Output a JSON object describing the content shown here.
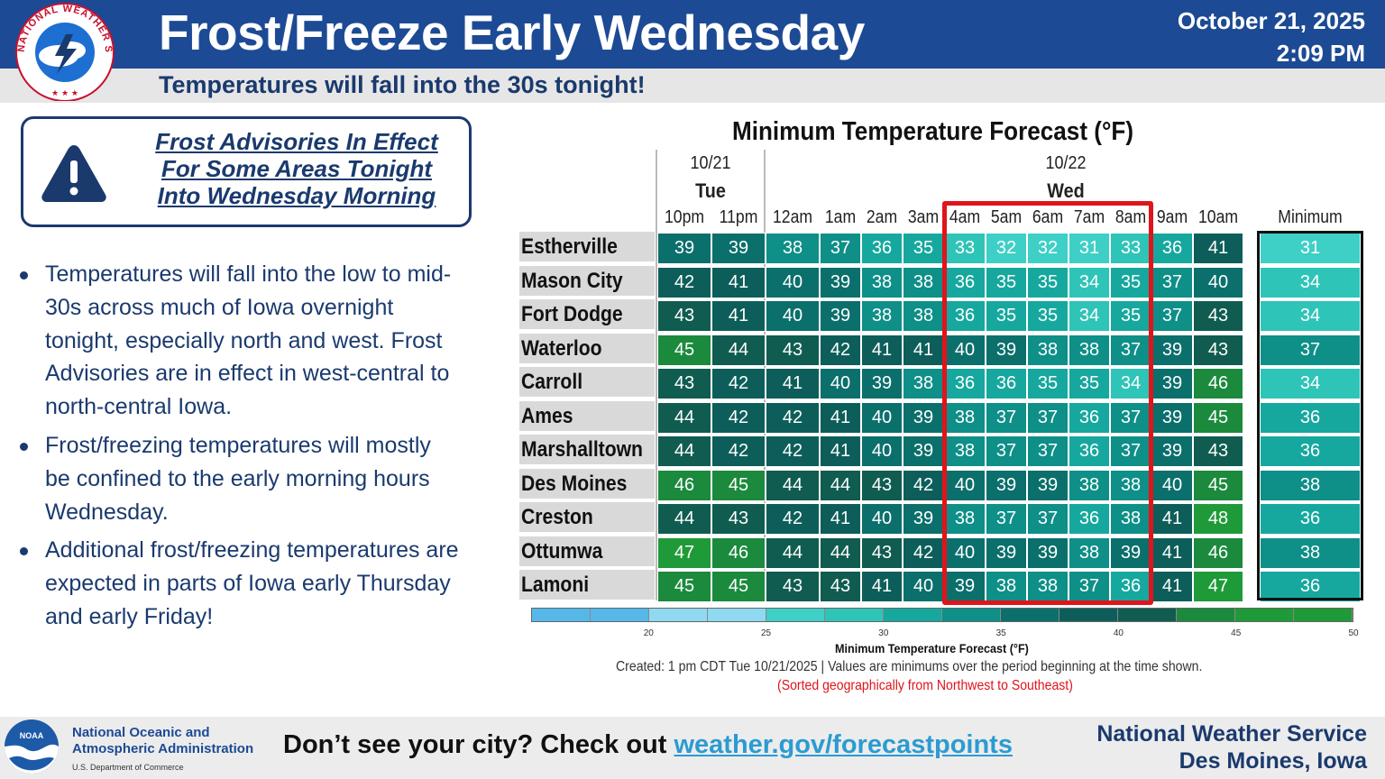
{
  "header": {
    "title": "Frost/Freeze Early Wednesday",
    "subtitle": "Temperatures will fall into the 30s tonight!",
    "date": "October 21, 2025",
    "time": "2:09 PM",
    "logo_text": "NATIONAL WEATHER SERVICE"
  },
  "advisory": {
    "lines": [
      "Frost Advisories In Effect",
      "For Some Areas Tonight",
      "Into Wednesday Morning"
    ]
  },
  "bullets": [
    "Temperatures will fall into the low to mid-30s across much of Iowa overnight tonight, especially north and west. Frost Advisories are in effect in west-central to north-central Iowa.",
    "Frost/freezing temperatures will mostly be confined to the early morning hours Wednesday.",
    "Additional frost/freezing temperatures are expected in parts of Iowa early Thursday and early Friday!"
  ],
  "chart_data": {
    "type": "table",
    "title": "Minimum Temperature Forecast (°F)",
    "dates": [
      {
        "date": "10/21",
        "day": "Tue"
      },
      {
        "date": "10/22",
        "day": "Wed"
      }
    ],
    "hours": [
      "10pm",
      "11pm",
      "12am",
      "1am",
      "2am",
      "3am",
      "4am",
      "5am",
      "6am",
      "7am",
      "8am",
      "9am",
      "10am"
    ],
    "minimum_header": "Minimum",
    "rows": [
      {
        "city": "Estherville",
        "values": [
          39,
          39,
          38,
          37,
          36,
          35,
          33,
          32,
          32,
          31,
          33,
          36,
          41
        ],
        "min": 31
      },
      {
        "city": "Mason City",
        "values": [
          42,
          41,
          40,
          39,
          38,
          38,
          36,
          35,
          35,
          34,
          35,
          37,
          40
        ],
        "min": 34
      },
      {
        "city": "Fort Dodge",
        "values": [
          43,
          41,
          40,
          39,
          38,
          38,
          36,
          35,
          35,
          34,
          35,
          37,
          43
        ],
        "min": 34
      },
      {
        "city": "Waterloo",
        "values": [
          45,
          44,
          43,
          42,
          41,
          41,
          40,
          39,
          38,
          38,
          37,
          39,
          43
        ],
        "min": 37
      },
      {
        "city": "Carroll",
        "values": [
          43,
          42,
          41,
          40,
          39,
          38,
          36,
          36,
          35,
          35,
          34,
          39,
          46
        ],
        "min": 34
      },
      {
        "city": "Ames",
        "values": [
          44,
          42,
          42,
          41,
          40,
          39,
          38,
          37,
          37,
          36,
          37,
          39,
          45
        ],
        "min": 36
      },
      {
        "city": "Marshalltown",
        "values": [
          44,
          42,
          42,
          41,
          40,
          39,
          38,
          37,
          37,
          36,
          37,
          39,
          43
        ],
        "min": 36
      },
      {
        "city": "Des Moines",
        "values": [
          46,
          45,
          44,
          44,
          43,
          42,
          40,
          39,
          39,
          38,
          38,
          40,
          45
        ],
        "min": 38
      },
      {
        "city": "Creston",
        "values": [
          44,
          43,
          42,
          41,
          40,
          39,
          38,
          37,
          37,
          36,
          38,
          41,
          48
        ],
        "min": 36
      },
      {
        "city": "Ottumwa",
        "values": [
          47,
          46,
          44,
          44,
          43,
          42,
          40,
          39,
          39,
          38,
          39,
          41,
          46
        ],
        "min": 38
      },
      {
        "city": "Lamoni",
        "values": [
          45,
          45,
          43,
          43,
          41,
          40,
          39,
          38,
          38,
          37,
          36,
          41,
          47
        ],
        "min": 36
      }
    ],
    "highlight_hours": [
      "4am",
      "5am",
      "6am",
      "7am",
      "8am"
    ],
    "colorbar": {
      "ticks": [
        20,
        25,
        30,
        35,
        40,
        45,
        50
      ],
      "range": [
        15,
        50
      ],
      "label": "Minimum Temperature Forecast (°F)"
    },
    "created_note": "Created: 1 pm CDT Tue 10/21/2025  |  Values are minimums over the period beginning at the time shown.",
    "sorted_note": "(Sorted geographically from Northwest to Southeast)"
  },
  "colors": {
    "header_blue": "#1d4a94",
    "text_navy": "#1a3a6e",
    "highlight_red": "#e0141b",
    "link": "#2b9bd2"
  },
  "footer": {
    "agency_line1": "National Oceanic and",
    "agency_line2": "Atmospheric Administration",
    "agency_dept": "U.S. Department of Commerce",
    "noaa_logo_text": "NOAA",
    "cta_text": "Don’t see your city? Check out ",
    "cta_link": "weather.gov/forecastpoints",
    "office_line1": "National Weather Service",
    "office_line2": "Des Moines, Iowa"
  }
}
